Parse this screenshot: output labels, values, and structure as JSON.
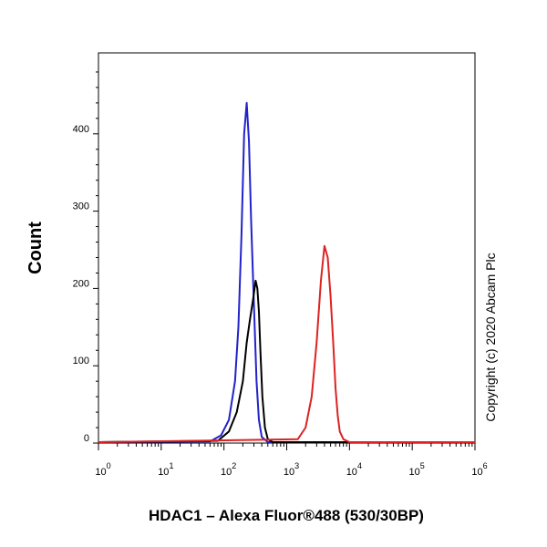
{
  "chart_data": {
    "type": "line",
    "xlabel": "HDAC1 – Alexa Fluor®488 (530/30BP)",
    "ylabel": "Count",
    "x_scale": "log",
    "xlim": [
      1,
      1000000
    ],
    "ylim": [
      0,
      500
    ],
    "x_ticks": [
      {
        "base": "10",
        "exp": "0",
        "value": 1
      },
      {
        "base": "10",
        "exp": "1",
        "value": 10
      },
      {
        "base": "10",
        "exp": "2",
        "value": 100
      },
      {
        "base": "10",
        "exp": "3",
        "value": 1000
      },
      {
        "base": "10",
        "exp": "4",
        "value": 10000
      },
      {
        "base": "10",
        "exp": "5",
        "value": 100000
      },
      {
        "base": "10",
        "exp": "6",
        "value": 1000000
      }
    ],
    "y_ticks": [
      {
        "label": "0",
        "value": 0
      },
      {
        "label": "100",
        "value": 100
      },
      {
        "label": "200",
        "value": 200
      },
      {
        "label": "300",
        "value": 300
      },
      {
        "label": "400",
        "value": 400
      }
    ],
    "grid": false,
    "annotation": "Copyright (c) 2020 Abcam Plc",
    "series": [
      {
        "color": "#2222cc",
        "x": [
          1,
          60,
          90,
          120,
          150,
          170,
          190,
          210,
          230,
          250,
          270,
          300,
          330,
          360,
          400,
          500,
          1000000
        ],
        "y": [
          0,
          2,
          10,
          30,
          80,
          150,
          270,
          400,
          440,
          390,
          290,
          180,
          80,
          30,
          8,
          0,
          0
        ]
      },
      {
        "color": "#000000",
        "x": [
          1,
          80,
          120,
          160,
          200,
          230,
          260,
          290,
          320,
          340,
          360,
          380,
          410,
          450,
          500,
          600,
          1000000
        ],
        "y": [
          0,
          3,
          15,
          40,
          80,
          130,
          160,
          185,
          210,
          200,
          170,
          120,
          60,
          20,
          5,
          0,
          0
        ]
      },
      {
        "color": "#dd2222",
        "x": [
          1,
          1500,
          2000,
          2500,
          3000,
          3500,
          4000,
          4500,
          5000,
          5500,
          6000,
          6500,
          7000,
          8000,
          10000,
          1000000
        ],
        "y": [
          0,
          5,
          20,
          60,
          130,
          210,
          255,
          240,
          190,
          130,
          70,
          35,
          15,
          5,
          0,
          0
        ]
      }
    ]
  }
}
